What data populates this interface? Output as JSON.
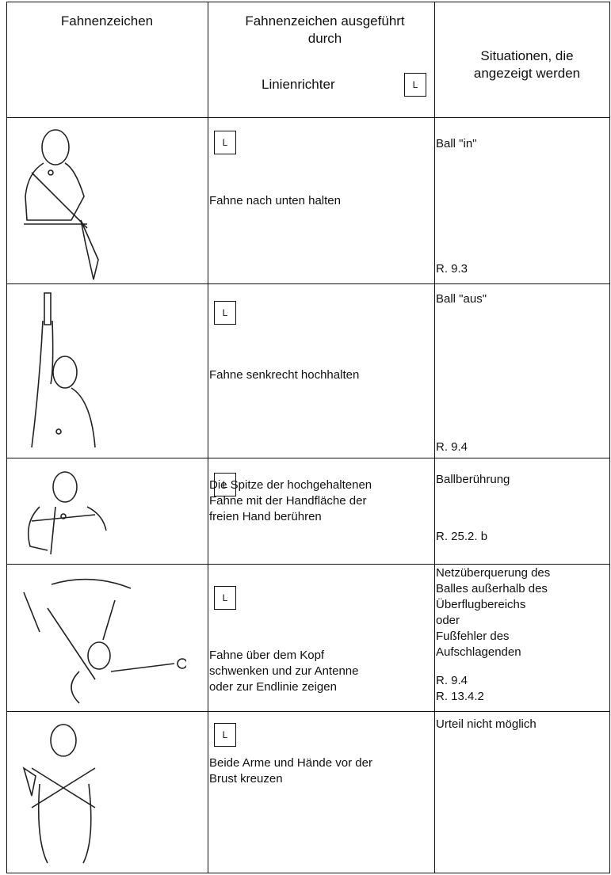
{
  "header": {
    "col1": "Fahnenzeichen",
    "col2": "Fahnenzeichen ausgeführt durch",
    "col2_role": "Linienrichter",
    "col2_badge": "L",
    "col3": "Situationen, die angezeigt werden"
  },
  "rows": [
    {
      "badge": "L",
      "description": [
        "Fahne nach unten halten"
      ],
      "situation": [
        "Ball \"in\""
      ],
      "rules": [
        "R. 9.3"
      ]
    },
    {
      "badge": "L",
      "description": [
        "Fahne senkrecht hochhalten"
      ],
      "situation": [
        "Ball \"aus\""
      ],
      "rules": [
        "R. 9.4"
      ]
    },
    {
      "badge": "L",
      "description": [
        "Die Spitze der hochgehaltenen",
        "Fahne mit der Handfläche der",
        "freien Hand berühren"
      ],
      "situation": [
        "Ballberührung"
      ],
      "rules": [
        "R. 25.2. b"
      ]
    },
    {
      "badge": "L",
      "description": [
        "Fahne über dem Kopf",
        "schwenken und zur Antenne",
        "oder zur Endlinie zeigen"
      ],
      "situation": [
        "Netzüberquerung des",
        "Balles außerhalb des",
        "Überflugbereichs",
        "oder",
        "Fußfehler des",
        "Aufschlagenden"
      ],
      "rules": [
        "R. 9.4",
        "R. 13.4.2"
      ]
    },
    {
      "badge": "L",
      "description": [
        "Beide Arme und Hände vor der",
        "Brust kreuzen"
      ],
      "situation": [
        "Urteil nicht möglich"
      ],
      "rules": []
    }
  ]
}
